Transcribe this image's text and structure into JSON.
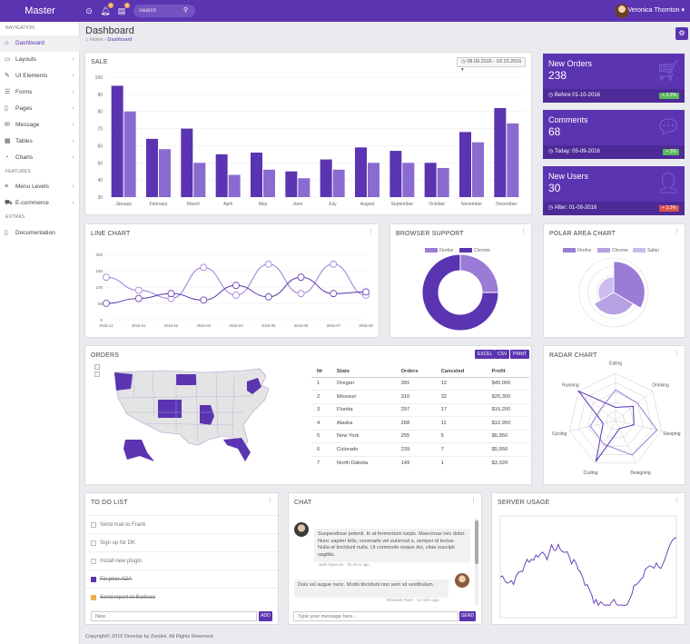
{
  "app": {
    "brand": "Master",
    "search_placeholder": "Search",
    "user_name": "Veronica Thornton",
    "notif_count": "3",
    "msg_count": "5"
  },
  "sidebar": {
    "nav_header": "NAVIGATION",
    "features_header": "FEATURES",
    "extras_header": "EXTRAS",
    "items": [
      {
        "label": "Dashboard",
        "icon": "home-icon",
        "active": true
      },
      {
        "label": "Layouts",
        "icon": "monitor-icon"
      },
      {
        "label": "UI Elements",
        "icon": "pencil-icon"
      },
      {
        "label": "Forms",
        "icon": "list-icon"
      },
      {
        "label": "Pages",
        "icon": "file-icon"
      },
      {
        "label": "Message",
        "icon": "envelope-icon"
      },
      {
        "label": "Tables",
        "icon": "table-icon"
      },
      {
        "label": "Charts",
        "icon": "chart-icon"
      },
      {
        "label": "Menu Levels",
        "icon": "layers-icon"
      },
      {
        "label": "E-commerce",
        "icon": "cart-icon"
      },
      {
        "label": "Documentation",
        "icon": "doc-icon"
      }
    ]
  },
  "header": {
    "title": "Dashboard",
    "breadcrumb_home": "Home",
    "breadcrumb_current": "Dashboard"
  },
  "sale": {
    "title": "SALE",
    "date_range": "08.09.2016 - 03.10.2016"
  },
  "stats": [
    {
      "label": "New Orders",
      "value": "238",
      "foot": "Before 01-10-2016",
      "badge": "+ 2.2%",
      "badge_color": "#5cb85c",
      "icon": "cart-icon"
    },
    {
      "label": "Comments",
      "value": "68",
      "foot": "Today: 05-09-2016",
      "badge": "+ 3%",
      "badge_color": "#5cb85c",
      "icon": "comment-icon"
    },
    {
      "label": "New Users",
      "value": "30",
      "foot": "After: 01-09-2016",
      "badge": "+ 3.3%",
      "badge_color": "#d9534f",
      "icon": "user-icon"
    }
  ],
  "line_chart": {
    "title": "LINE CHART"
  },
  "browser_support": {
    "title": "BROWSER SUPPORT",
    "legend": [
      "Firefox",
      "Chrome"
    ]
  },
  "polar": {
    "title": "POLAR AREA CHART",
    "legend": [
      "Firefox",
      "Chrome",
      "Safari"
    ]
  },
  "orders": {
    "title": "ORDERS",
    "buttons": [
      "EXCEL",
      "CSV",
      "PRINT"
    ],
    "columns": [
      "Nr",
      "State",
      "Orders",
      "Canceled",
      "Profit"
    ],
    "rows": [
      [
        "1",
        "Oregon",
        "391",
        "12",
        "$45,000"
      ],
      [
        "2",
        "Missouri",
        "310",
        "32",
        "$25,300"
      ],
      [
        "3",
        "Florida",
        "297",
        "17",
        "$15,200"
      ],
      [
        "4",
        "Alaska",
        "268",
        "11",
        "$12,950"
      ],
      [
        "5",
        "New York",
        "255",
        "5",
        "$6,950"
      ],
      [
        "6",
        "Colorado",
        "239",
        "7",
        "$5,950"
      ],
      [
        "7",
        "North Dakota",
        "149",
        "1",
        "$3,320"
      ]
    ]
  },
  "radar": {
    "title": "RADAR CHART"
  },
  "todo": {
    "title": "TO DO LIST",
    "items": [
      {
        "text": "Send mail to Frank",
        "done": false
      },
      {
        "text": "Sign up for DK",
        "done": false
      },
      {
        "text": "Install new plugin",
        "done": false
      },
      {
        "text": "Fix prior ADA",
        "done": true
      },
      {
        "text": "Send report to Barbara",
        "done": true
      }
    ],
    "new_placeholder": "New",
    "add_label": "ADD"
  },
  "chat": {
    "title": "CHAT",
    "messages": [
      {
        "text": "Suspendisse potenti. In at fermentum turpis. Maecenas nec dolor. Nunc sapien felis, venenatis vel euismod a, semper id lectus. Nulla at tincidunt nulla. Ut commodo neque dui, vitae suscipit sagittis.",
        "author": "Jack Sparrow",
        "time": "20 mins ago"
      },
      {
        "text": "Duis vel augue nunc. Morbi tincidunt non sem sit vestibulum.",
        "author": "Bhaumik Patel",
        "time": "12 mins ago"
      }
    ],
    "placeholder": "Type your message here...",
    "send_label": "SEND"
  },
  "server": {
    "title": "SERVER USAGE"
  },
  "footer": "Copyright© 2016 Develop by Zwolek. All Rights Reserved.",
  "chart_data": [
    {
      "type": "bar",
      "title": "SALE",
      "categories": [
        "January",
        "February",
        "March",
        "April",
        "May",
        "June",
        "July",
        "August",
        "September",
        "October",
        "November",
        "December"
      ],
      "series": [
        {
          "values": [
            95,
            64,
            70,
            55,
            56,
            45,
            52,
            59,
            57,
            50,
            68,
            82
          ]
        },
        {
          "values": [
            80,
            58,
            50,
            43,
            46,
            41,
            46,
            50,
            50,
            47,
            62,
            73
          ]
        }
      ],
      "ylim": [
        30,
        100
      ],
      "yticks": [
        30,
        40,
        50,
        60,
        70,
        80,
        90,
        100
      ]
    },
    {
      "type": "line",
      "title": "LINE CHART",
      "categories": [
        "2015-12",
        "2016-01",
        "2016-02",
        "2016-03",
        "2016-04",
        "2016-05",
        "2016-06",
        "2016-07",
        "2016-08"
      ],
      "series": [
        {
          "values": [
            130,
            90,
            65,
            160,
            75,
            170,
            80,
            170,
            75
          ]
        },
        {
          "values": [
            50,
            65,
            80,
            60,
            105,
            70,
            130,
            80,
            85
          ]
        }
      ],
      "ylim": [
        0,
        200
      ],
      "yticks": [
        0,
        50,
        100,
        150,
        200
      ]
    },
    {
      "type": "pie",
      "title": "BROWSER SUPPORT",
      "labels": [
        "Firefox",
        "Chrome"
      ],
      "values": [
        25,
        75
      ]
    },
    {
      "type": "polar",
      "title": "POLAR AREA CHART",
      "labels": [
        "Firefox",
        "Chrome",
        "Safari"
      ],
      "values": [
        90,
        65,
        45
      ]
    },
    {
      "type": "radar",
      "title": "RADAR CHART",
      "axes": [
        "Eating",
        "Drinking",
        "Sleeping",
        "Designing",
        "Coding",
        "Cycling",
        "Running"
      ],
      "series": [
        {
          "values": [
            65,
            59,
            90,
            81,
            56,
            55,
            40
          ]
        },
        {
          "values": [
            28,
            48,
            40,
            19,
            96,
            27,
            100
          ]
        }
      ],
      "rmax": 100
    },
    {
      "type": "line",
      "title": "SERVER USAGE",
      "ylim": [
        0,
        100
      ],
      "points": 80
    }
  ]
}
